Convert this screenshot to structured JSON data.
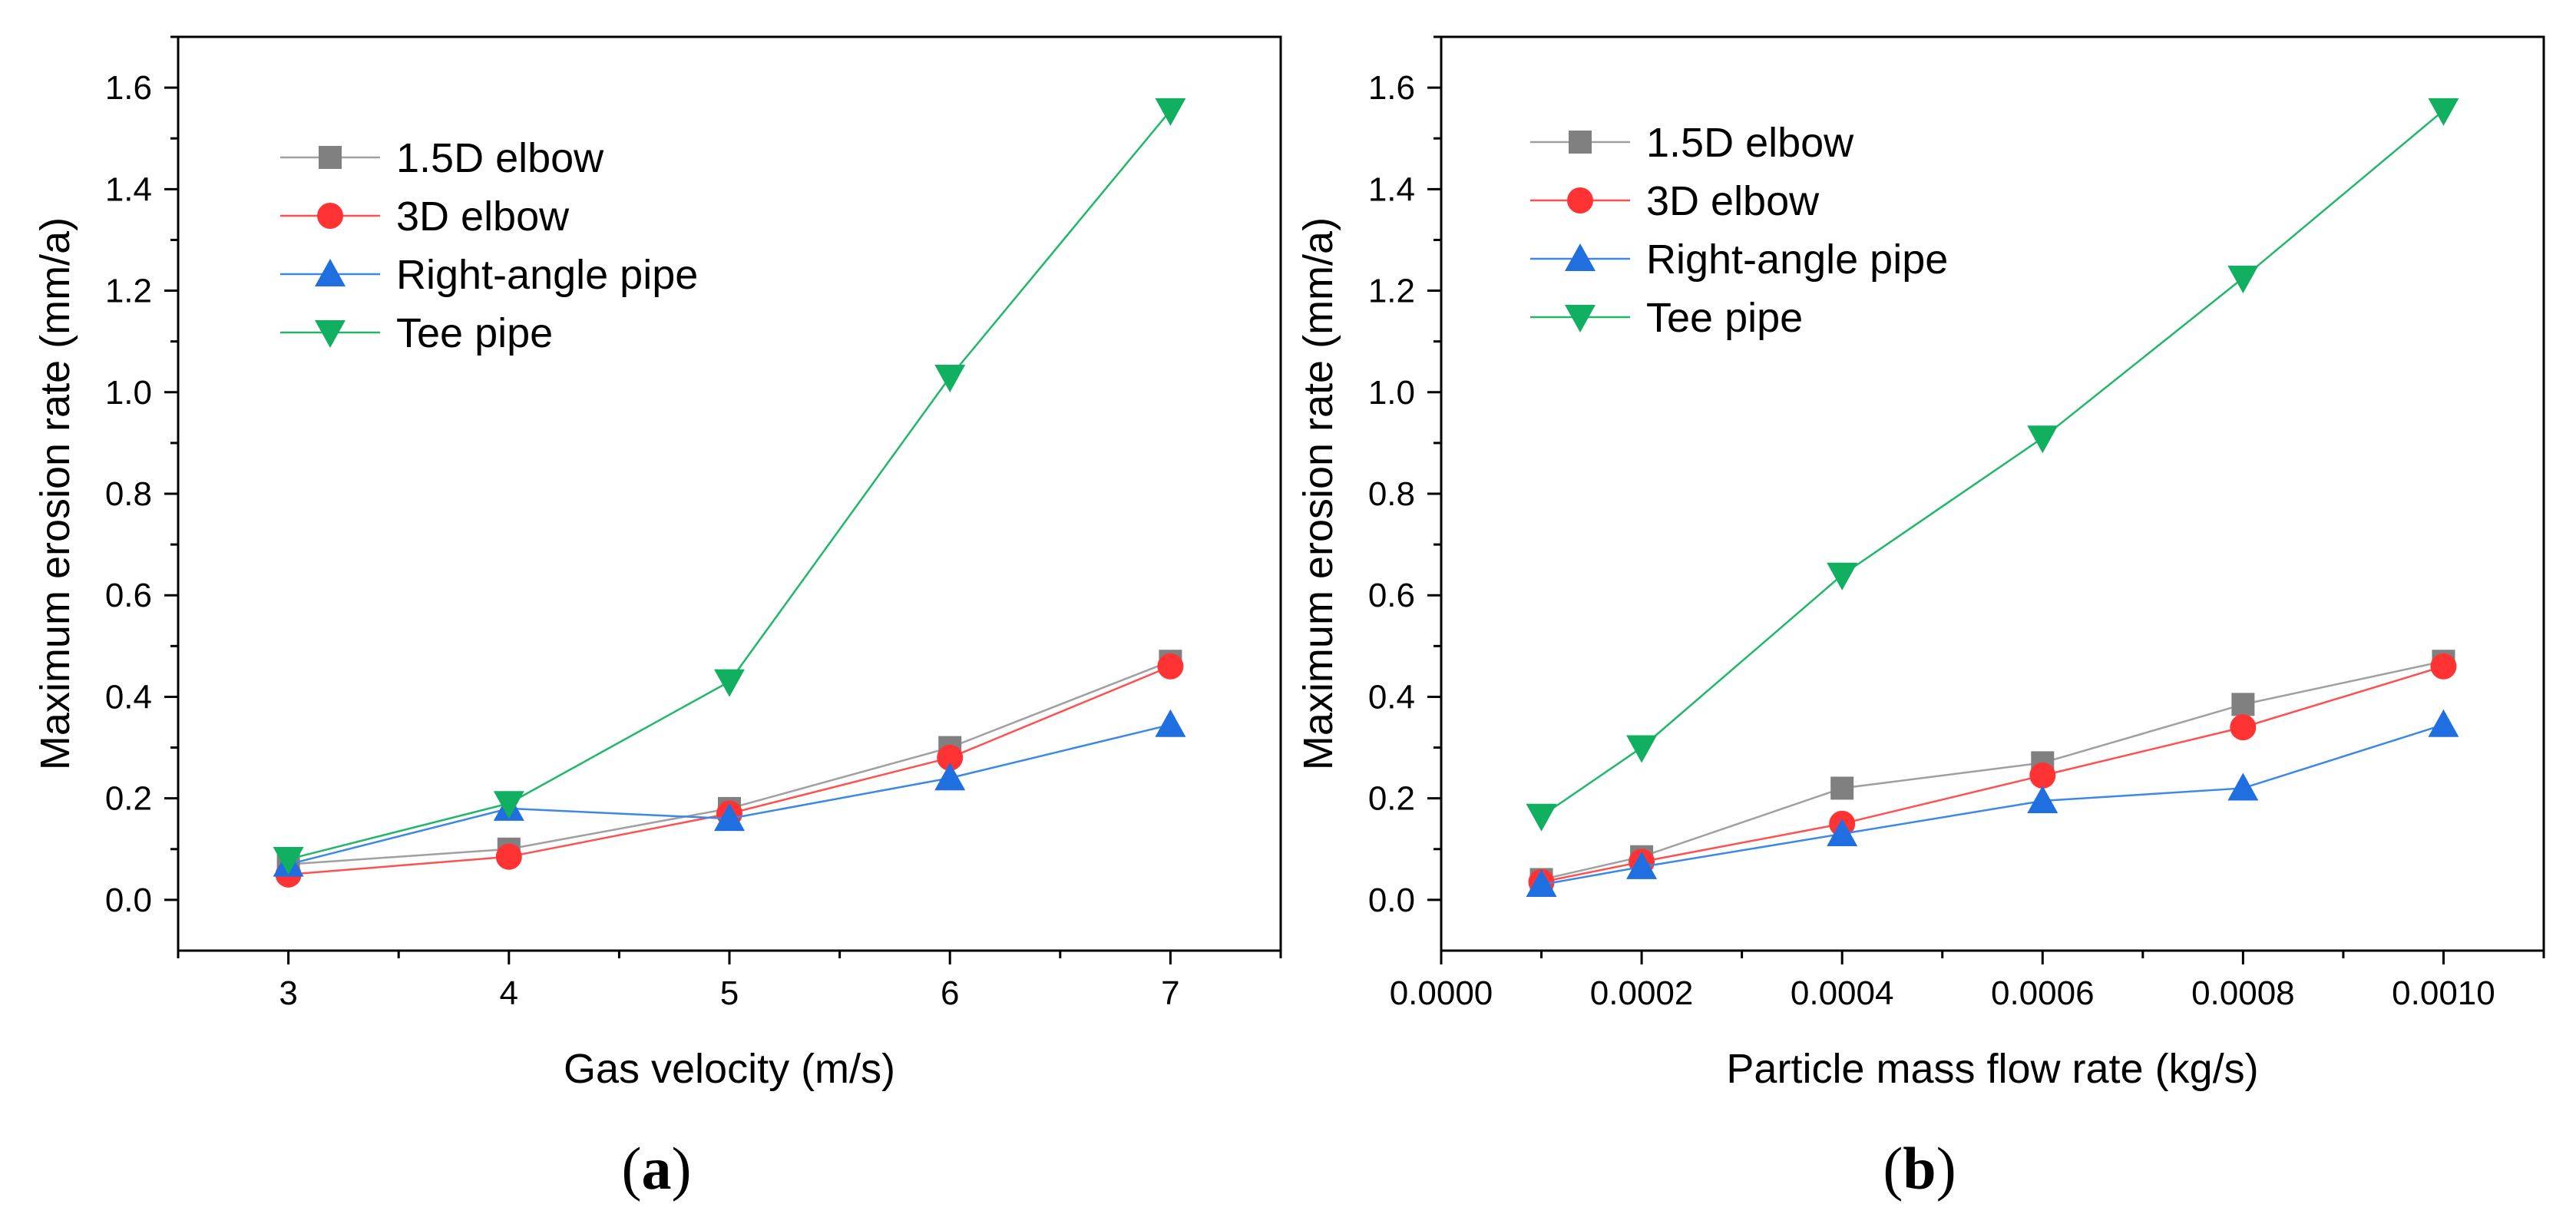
{
  "figure_labels": {
    "a_open": "(",
    "a_letter": "a",
    "a_close": ")",
    "b_open": "(",
    "b_letter": "b",
    "b_close": ")"
  },
  "chart_data": [
    {
      "type": "line",
      "panel": "a",
      "xlabel": "Gas velocity (m/s)",
      "ylabel": "Maximum erosion rate (mm/a)",
      "xlim": [
        2.5,
        7.5
      ],
      "ylim": [
        -0.1,
        1.7
      ],
      "xticks": [
        3,
        4,
        5,
        6,
        7
      ],
      "xtick_labels": [
        "3",
        "4",
        "5",
        "6",
        "7"
      ],
      "yticks": [
        0.0,
        0.2,
        0.4,
        0.6,
        0.8,
        1.0,
        1.2,
        1.4,
        1.6
      ],
      "ytick_labels": [
        "0.0",
        "0.2",
        "0.4",
        "0.6",
        "0.8",
        "1.0",
        "1.2",
        "1.4",
        "1.6"
      ],
      "legend_position": "top-left",
      "x": [
        3,
        4,
        5,
        6,
        7
      ],
      "series": [
        {
          "name": "1.5D elbow",
          "marker": "square",
          "color": "#808080",
          "line_color": "#a0a0a0",
          "values": [
            0.07,
            0.1,
            0.18,
            0.3,
            0.47
          ]
        },
        {
          "name": "3D elbow",
          "marker": "circle",
          "color": "#ff3333",
          "line_color": "#ff5050",
          "values": [
            0.05,
            0.085,
            0.17,
            0.28,
            0.46
          ]
        },
        {
          "name": "Right-angle pipe",
          "marker": "triangle-up",
          "color": "#1f6fe0",
          "line_color": "#3c88e6",
          "values": [
            0.07,
            0.18,
            0.16,
            0.24,
            0.345
          ]
        },
        {
          "name": "Tee pipe",
          "marker": "triangle-down",
          "color": "#10b060",
          "line_color": "#20b868",
          "values": [
            0.08,
            0.19,
            0.43,
            1.03,
            1.555
          ]
        }
      ]
    },
    {
      "type": "line",
      "panel": "b",
      "xlabel": "Particle mass flow rate (kg/s)",
      "ylabel": "Maximum erosion rate (mm/a)",
      "xlim": [
        0.0,
        0.0011
      ],
      "ylim": [
        -0.1,
        1.7
      ],
      "xticks": [
        0.0,
        0.0002,
        0.0004,
        0.0006,
        0.0008,
        0.001
      ],
      "xtick_labels": [
        "0.0000",
        "0.0002",
        "0.0004",
        "0.0006",
        "0.0008",
        "0.0010"
      ],
      "yticks": [
        0.0,
        0.2,
        0.4,
        0.6,
        0.8,
        1.0,
        1.2,
        1.4,
        1.6
      ],
      "ytick_labels": [
        "0.0",
        "0.2",
        "0.4",
        "0.6",
        "0.8",
        "1.0",
        "1.2",
        "1.4",
        "1.6"
      ],
      "legend_position": "top-left",
      "x": [
        0.0001,
        0.0002,
        0.0004,
        0.0006,
        0.0008,
        0.001
      ],
      "series": [
        {
          "name": "1.5D elbow",
          "marker": "square",
          "color": "#808080",
          "line_color": "#a0a0a0",
          "values": [
            0.04,
            0.085,
            0.22,
            0.27,
            0.385,
            0.47
          ]
        },
        {
          "name": "3D elbow",
          "marker": "circle",
          "color": "#ff3333",
          "line_color": "#ff5050",
          "values": [
            0.035,
            0.075,
            0.15,
            0.245,
            0.34,
            0.46
          ]
        },
        {
          "name": "Right-angle pipe",
          "marker": "triangle-up",
          "color": "#1f6fe0",
          "line_color": "#3c88e6",
          "values": [
            0.03,
            0.065,
            0.13,
            0.195,
            0.22,
            0.345
          ]
        },
        {
          "name": "Tee pipe",
          "marker": "triangle-down",
          "color": "#10b060",
          "line_color": "#20b868",
          "values": [
            0.165,
            0.3,
            0.64,
            0.91,
            1.225,
            1.555
          ]
        }
      ]
    }
  ]
}
